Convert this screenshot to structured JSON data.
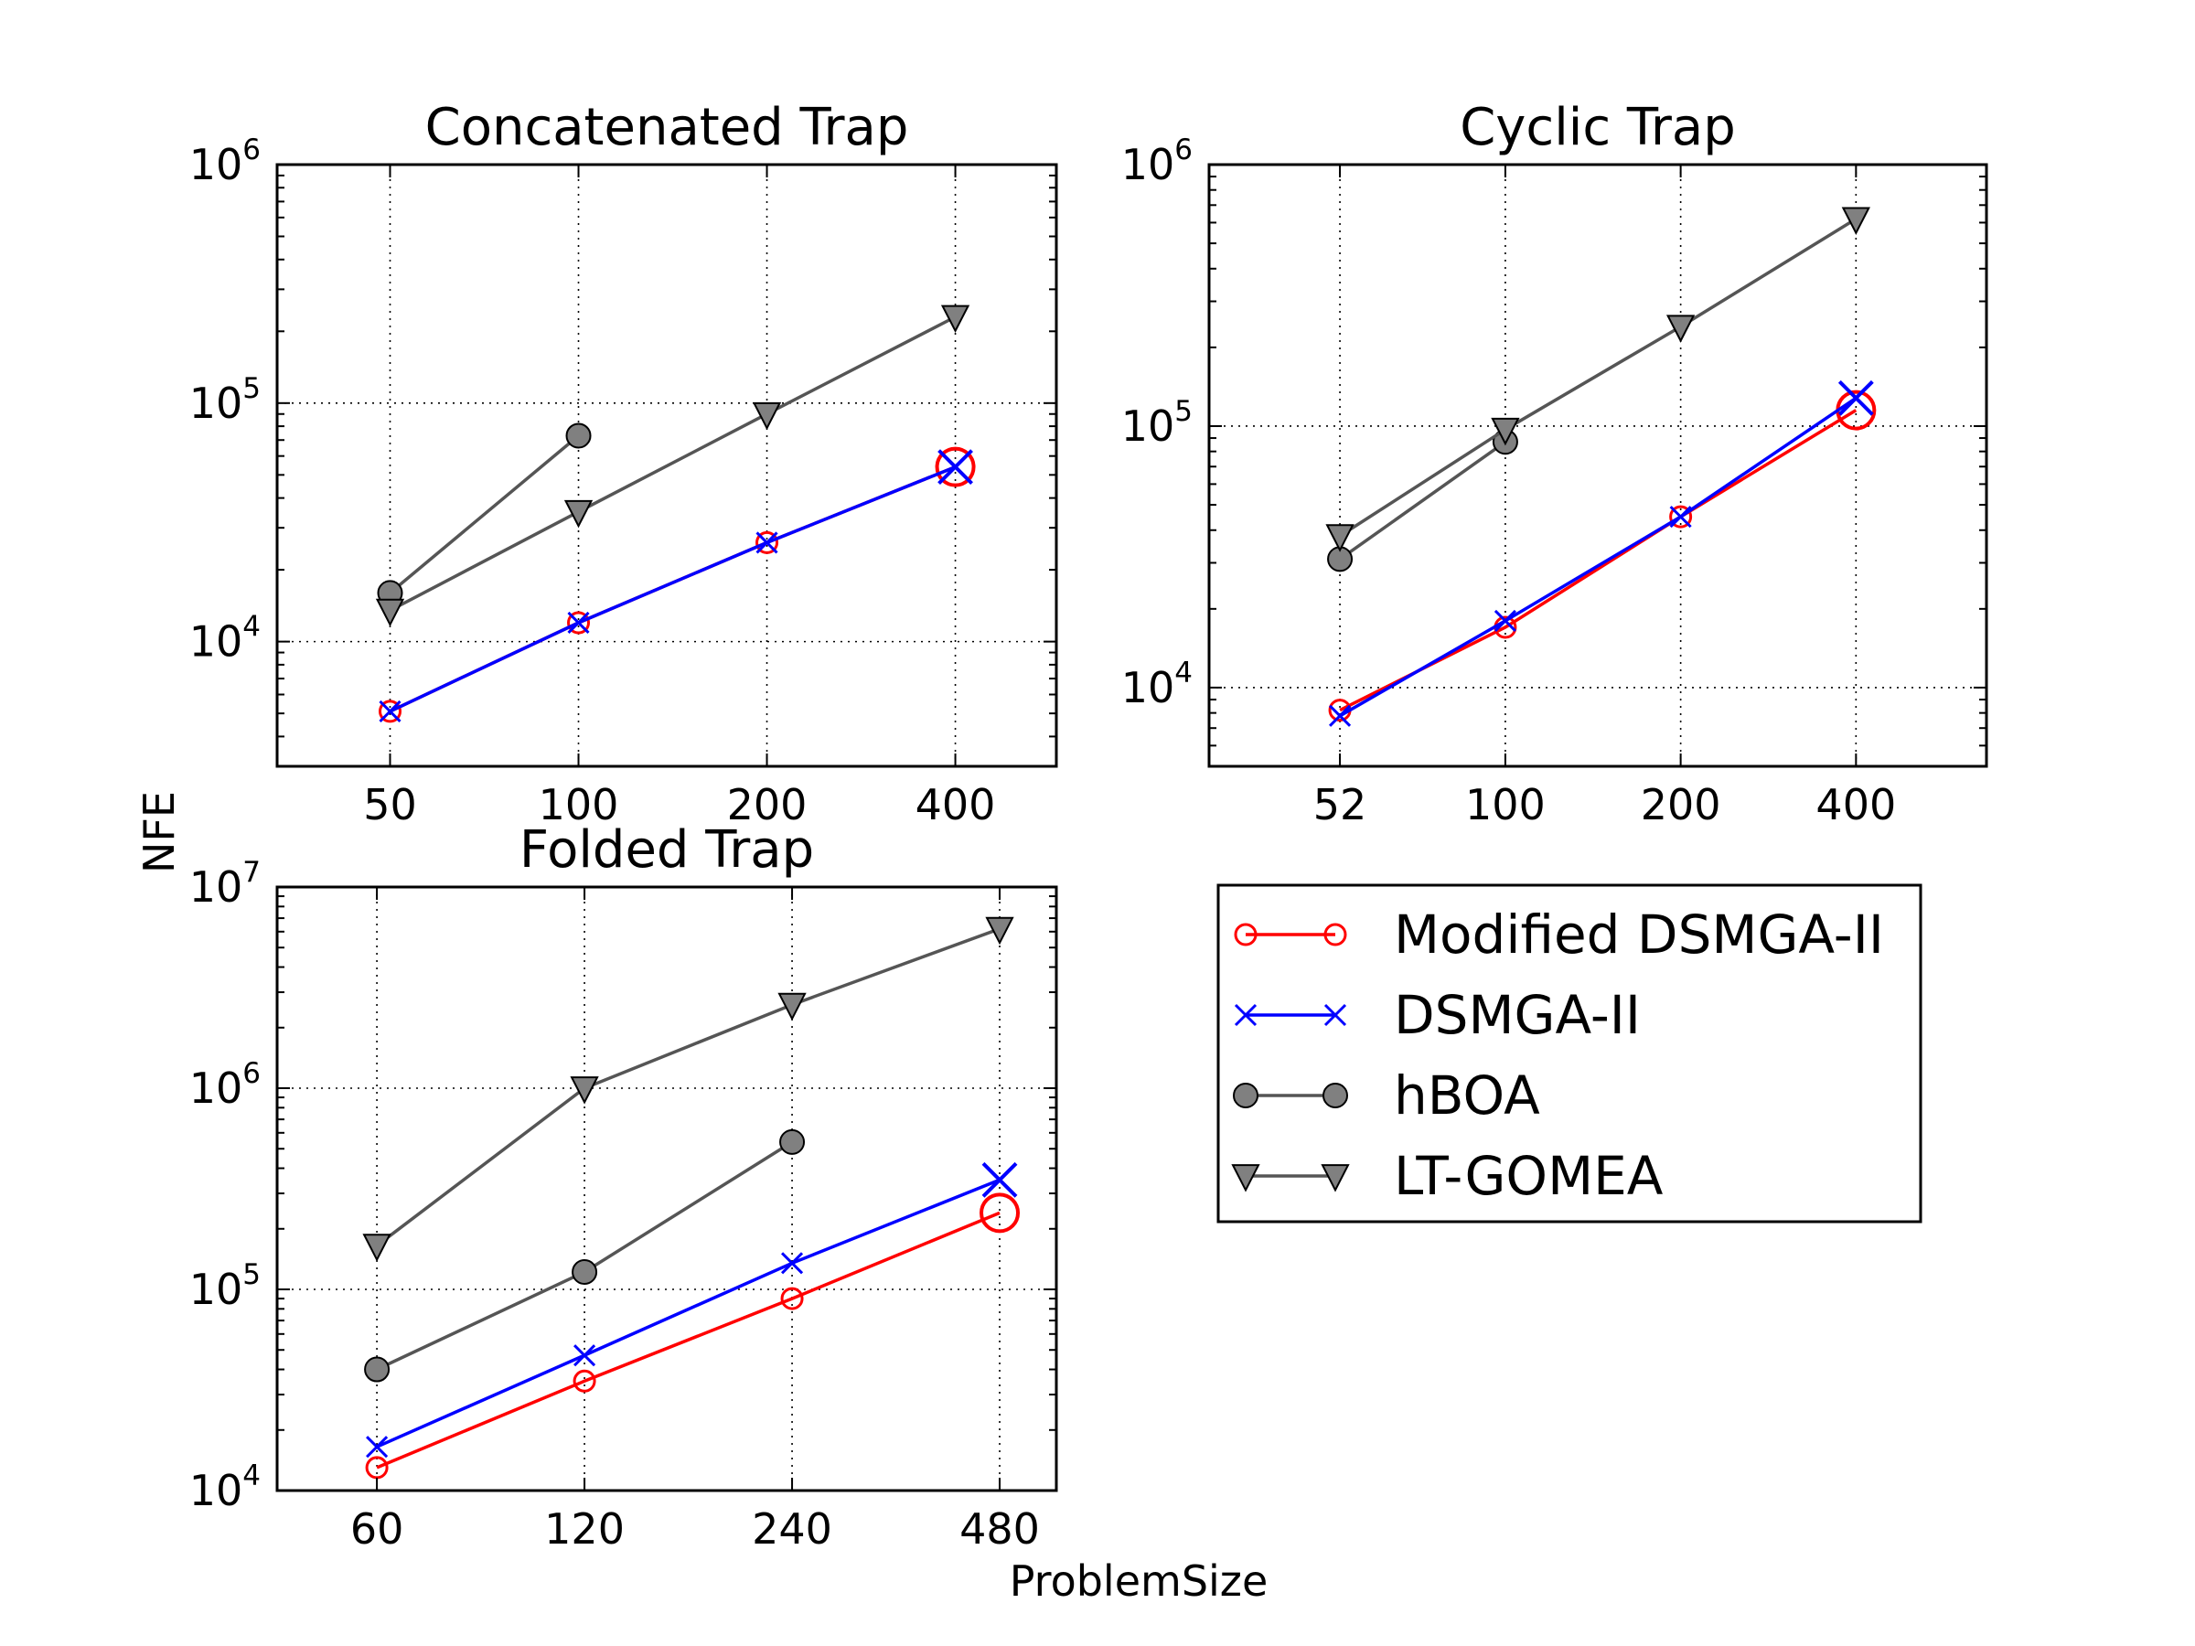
{
  "figure": {
    "xlabel": "ProblemSize",
    "ylabel": "NFE"
  },
  "series_style": {
    "Modified DSMGA-II": {
      "color": "#ff0000",
      "marker": "open-circle"
    },
    "DSMGA-II": {
      "color": "#0000ff",
      "marker": "x"
    },
    "hBOA": {
      "color": "#555555",
      "marker": "filled-circle",
      "fill": "#808080"
    },
    "LT-GOMEA": {
      "color": "#555555",
      "marker": "down-triangle",
      "fill": "#808080"
    }
  },
  "legend": {
    "entries": [
      "Modified DSMGA-II",
      "DSMGA-II",
      "hBOA",
      "LT-GOMEA"
    ],
    "placement": "lower-right"
  },
  "chart_data": [
    {
      "type": "line",
      "title": "Concatenated Trap",
      "xscale": "log",
      "yscale": "log",
      "xlim": [
        33,
        580
      ],
      "ylim": [
        3000,
        1000000
      ],
      "xticks": [
        50,
        100,
        200,
        400
      ],
      "yticks": [
        {
          "base": "10",
          "exp": "4",
          "value": 10000
        },
        {
          "base": "10",
          "exp": "5",
          "value": 100000
        },
        {
          "base": "10",
          "exp": "6",
          "value": 1000000
        }
      ],
      "grid": true,
      "series": [
        {
          "name": "Modified DSMGA-II",
          "x": [
            50,
            100,
            200,
            400
          ],
          "y": [
            5100,
            12000,
            26000,
            54000
          ],
          "last_marker_large": true
        },
        {
          "name": "DSMGA-II",
          "x": [
            50,
            100,
            200,
            400
          ],
          "y": [
            5100,
            12000,
            26000,
            54000
          ],
          "last_marker_large": true
        },
        {
          "name": "hBOA",
          "x": [
            50,
            100
          ],
          "y": [
            16000,
            73000
          ]
        },
        {
          "name": "LT-GOMEA",
          "x": [
            50,
            100,
            200,
            400
          ],
          "y": [
            13500,
            35000,
            90000,
            230000
          ]
        }
      ]
    },
    {
      "type": "line",
      "title": "Cyclic Trap",
      "xscale": "log",
      "yscale": "log",
      "xlim": [
        31,
        670
      ],
      "ylim": [
        5000,
        1000000
      ],
      "xticks": [
        52,
        100,
        200,
        400
      ],
      "yticks": [
        {
          "base": "10",
          "exp": "4",
          "value": 10000
        },
        {
          "base": "10",
          "exp": "5",
          "value": 100000
        },
        {
          "base": "10",
          "exp": "6",
          "value": 1000000
        }
      ],
      "grid": true,
      "series": [
        {
          "name": "Modified DSMGA-II",
          "x": [
            52,
            100,
            200,
            400
          ],
          "y": [
            8200,
            17000,
            45000,
            115000
          ],
          "last_marker_large": true
        },
        {
          "name": "DSMGA-II",
          "x": [
            52,
            100,
            200,
            400
          ],
          "y": [
            7800,
            18000,
            45000,
            128000
          ],
          "last_marker_large": true
        },
        {
          "name": "hBOA",
          "x": [
            52,
            100
          ],
          "y": [
            31000,
            87000
          ]
        },
        {
          "name": "LT-GOMEA",
          "x": [
            52,
            100,
            200,
            400
          ],
          "y": [
            38000,
            97000,
            240000,
            620000
          ]
        }
      ]
    },
    {
      "type": "line",
      "title": "Folded Trap",
      "xscale": "log",
      "yscale": "log",
      "xlim": [
        43,
        580
      ],
      "ylim": [
        10000,
        10000000
      ],
      "xticks": [
        60,
        120,
        240,
        480
      ],
      "yticks": [
        {
          "base": "10",
          "exp": "4",
          "value": 10000
        },
        {
          "base": "10",
          "exp": "5",
          "value": 100000
        },
        {
          "base": "10",
          "exp": "6",
          "value": 1000000
        },
        {
          "base": "10",
          "exp": "7",
          "value": 10000000
        }
      ],
      "grid": true,
      "series": [
        {
          "name": "Modified DSMGA-II",
          "x": [
            60,
            120,
            240,
            480
          ],
          "y": [
            13000,
            35000,
            90000,
            240000
          ],
          "last_marker_large": true
        },
        {
          "name": "DSMGA-II",
          "x": [
            60,
            120,
            240,
            480
          ],
          "y": [
            16500,
            47000,
            135000,
            350000
          ],
          "last_marker_large": true
        },
        {
          "name": "hBOA",
          "x": [
            60,
            120,
            240
          ],
          "y": [
            40000,
            122000,
            540000
          ]
        },
        {
          "name": "LT-GOMEA",
          "x": [
            60,
            120,
            240,
            480
          ],
          "y": [
            165000,
            1000000,
            2600000,
            6200000
          ]
        }
      ]
    }
  ]
}
